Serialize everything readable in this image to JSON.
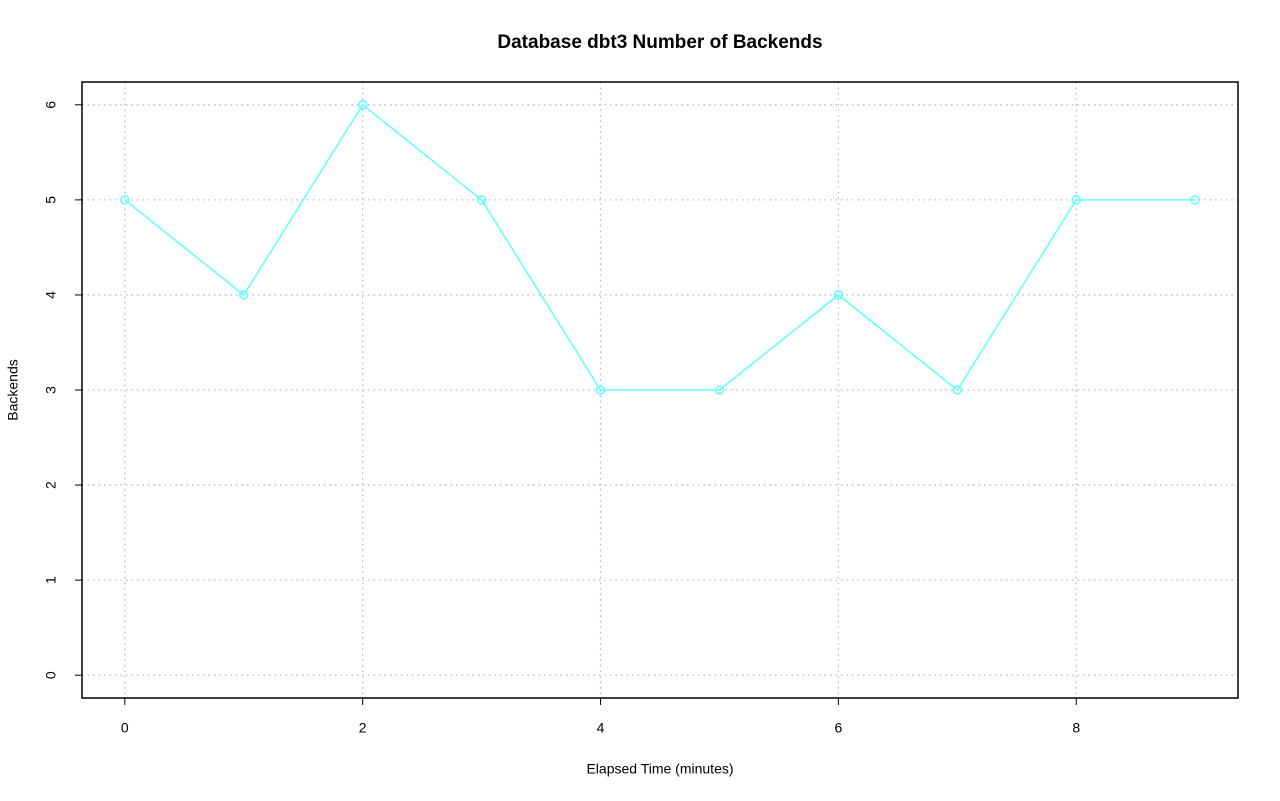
{
  "chart_data": {
    "type": "line",
    "title": "Database dbt3 Number of Backends",
    "x_label": "Elapsed Time (minutes)",
    "y_label": "Backends",
    "x": [
      0,
      1,
      2,
      3,
      4,
      5,
      6,
      7,
      8,
      9
    ],
    "values": [
      5,
      4,
      6,
      5,
      3,
      3,
      4,
      3,
      5,
      5
    ],
    "color": "#66ffff",
    "xlim": [
      -0.36,
      9.36
    ],
    "xticks": [
      0,
      2,
      4,
      6,
      8
    ],
    "ylim": [
      -0.24,
      6.24
    ],
    "yticks": [
      0,
      1,
      2,
      3,
      4,
      5,
      6
    ],
    "grid": true
  }
}
